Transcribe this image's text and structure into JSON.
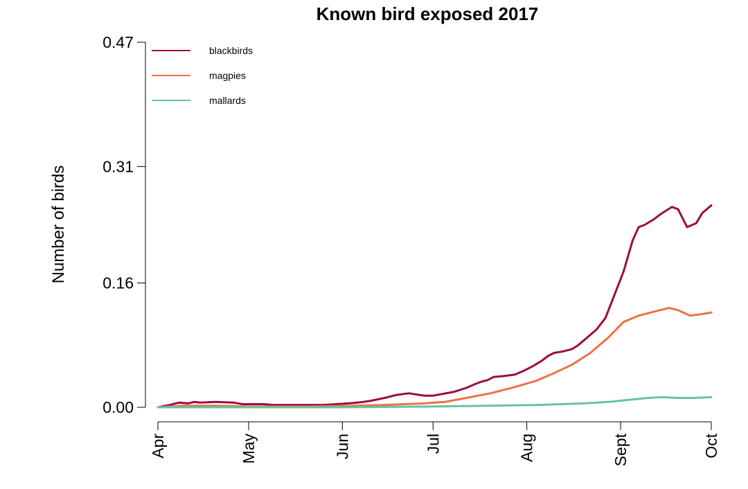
{
  "chart_data": {
    "type": "line",
    "title": "Known bird exposed 2017",
    "xlabel": "",
    "ylabel": "Number of birds",
    "x_tick_labels": [
      "Apr",
      "May",
      "Jun",
      "Jul",
      "Aug",
      "Sept",
      "Oct"
    ],
    "x_tick_dates": [
      "2017-04-01",
      "2017-05-01",
      "2017-06-01",
      "2017-07-01",
      "2017-08-01",
      "2017-09-01",
      "2017-10-01"
    ],
    "y_tick_labels": [
      "0.00",
      "0.16",
      "0.31",
      "0.47"
    ],
    "y_ticks": [
      0,
      0.16,
      0.31,
      0.47
    ],
    "ylim": [
      0,
      0.47
    ],
    "xlim": [
      "2017-04-01",
      "2017-10-01"
    ],
    "grid": false,
    "legend_position": "top-left",
    "series": [
      {
        "name": "blackbirds",
        "color": "#9e0a3f",
        "points": [
          [
            "2017-04-01",
            0.0
          ],
          [
            "2017-04-05",
            0.003
          ],
          [
            "2017-04-08",
            0.006
          ],
          [
            "2017-04-11",
            0.005
          ],
          [
            "2017-04-13",
            0.007
          ],
          [
            "2017-04-15",
            0.006
          ],
          [
            "2017-04-20",
            0.007
          ],
          [
            "2017-04-26",
            0.006
          ],
          [
            "2017-04-29",
            0.004
          ],
          [
            "2017-05-06",
            0.004
          ],
          [
            "2017-05-09",
            0.003
          ],
          [
            "2017-05-20",
            0.003
          ],
          [
            "2017-05-26",
            0.003
          ],
          [
            "2017-06-03",
            0.005
          ],
          [
            "2017-06-06",
            0.006
          ],
          [
            "2017-06-10",
            0.008
          ],
          [
            "2017-06-15",
            0.012
          ],
          [
            "2017-06-19",
            0.016
          ],
          [
            "2017-06-23",
            0.018
          ],
          [
            "2017-06-28",
            0.015
          ],
          [
            "2017-07-01",
            0.015
          ],
          [
            "2017-07-04",
            0.017
          ],
          [
            "2017-07-08",
            0.02
          ],
          [
            "2017-07-12",
            0.025
          ],
          [
            "2017-07-15",
            0.03
          ],
          [
            "2017-07-17",
            0.033
          ],
          [
            "2017-07-19",
            0.035
          ],
          [
            "2017-07-21",
            0.039
          ],
          [
            "2017-07-24",
            0.04
          ],
          [
            "2017-07-28",
            0.042
          ],
          [
            "2017-07-31",
            0.047
          ],
          [
            "2017-08-03",
            0.053
          ],
          [
            "2017-08-06",
            0.06
          ],
          [
            "2017-08-08",
            0.066
          ],
          [
            "2017-08-10",
            0.07
          ],
          [
            "2017-08-13",
            0.072
          ],
          [
            "2017-08-16",
            0.075
          ],
          [
            "2017-08-18",
            0.08
          ],
          [
            "2017-08-21",
            0.09
          ],
          [
            "2017-08-24",
            0.1
          ],
          [
            "2017-08-27",
            0.115
          ],
          [
            "2017-08-30",
            0.145
          ],
          [
            "2017-09-02",
            0.175
          ],
          [
            "2017-09-05",
            0.215
          ],
          [
            "2017-09-07",
            0.232
          ],
          [
            "2017-09-09",
            0.235
          ],
          [
            "2017-09-12",
            0.242
          ],
          [
            "2017-09-14",
            0.248
          ],
          [
            "2017-09-16",
            0.253
          ],
          [
            "2017-09-18",
            0.258
          ],
          [
            "2017-09-20",
            0.255
          ],
          [
            "2017-09-23",
            0.232
          ],
          [
            "2017-09-26",
            0.237
          ],
          [
            "2017-09-28",
            0.25
          ],
          [
            "2017-10-01",
            0.26
          ]
        ]
      },
      {
        "name": "magpies",
        "color": "#f07043",
        "points": [
          [
            "2017-04-01",
            0.0
          ],
          [
            "2017-04-10",
            0.002
          ],
          [
            "2017-04-20",
            0.002
          ],
          [
            "2017-05-01",
            0.001
          ],
          [
            "2017-05-20",
            0.001
          ],
          [
            "2017-06-05",
            0.002
          ],
          [
            "2017-06-15",
            0.003
          ],
          [
            "2017-06-28",
            0.005
          ],
          [
            "2017-07-05",
            0.007
          ],
          [
            "2017-07-12",
            0.012
          ],
          [
            "2017-07-20",
            0.018
          ],
          [
            "2017-07-28",
            0.026
          ],
          [
            "2017-08-04",
            0.034
          ],
          [
            "2017-08-10",
            0.044
          ],
          [
            "2017-08-16",
            0.055
          ],
          [
            "2017-08-22",
            0.07
          ],
          [
            "2017-08-28",
            0.09
          ],
          [
            "2017-09-02",
            0.11
          ],
          [
            "2017-09-07",
            0.118
          ],
          [
            "2017-09-12",
            0.123
          ],
          [
            "2017-09-17",
            0.128
          ],
          [
            "2017-09-20",
            0.125
          ],
          [
            "2017-09-24",
            0.118
          ],
          [
            "2017-09-28",
            0.12
          ],
          [
            "2017-10-01",
            0.122
          ]
        ]
      },
      {
        "name": "mallards",
        "color": "#66c2a5",
        "points": [
          [
            "2017-04-01",
            0.0
          ],
          [
            "2017-05-01",
            0.0
          ],
          [
            "2017-06-01",
            0.0
          ],
          [
            "2017-07-01",
            0.001
          ],
          [
            "2017-07-20",
            0.002
          ],
          [
            "2017-08-05",
            0.003
          ],
          [
            "2017-08-20",
            0.005
          ],
          [
            "2017-08-28",
            0.007
          ],
          [
            "2017-09-05",
            0.01
          ],
          [
            "2017-09-10",
            0.012
          ],
          [
            "2017-09-15",
            0.013
          ],
          [
            "2017-09-20",
            0.012
          ],
          [
            "2017-09-25",
            0.012
          ],
          [
            "2017-10-01",
            0.013
          ]
        ]
      }
    ]
  }
}
